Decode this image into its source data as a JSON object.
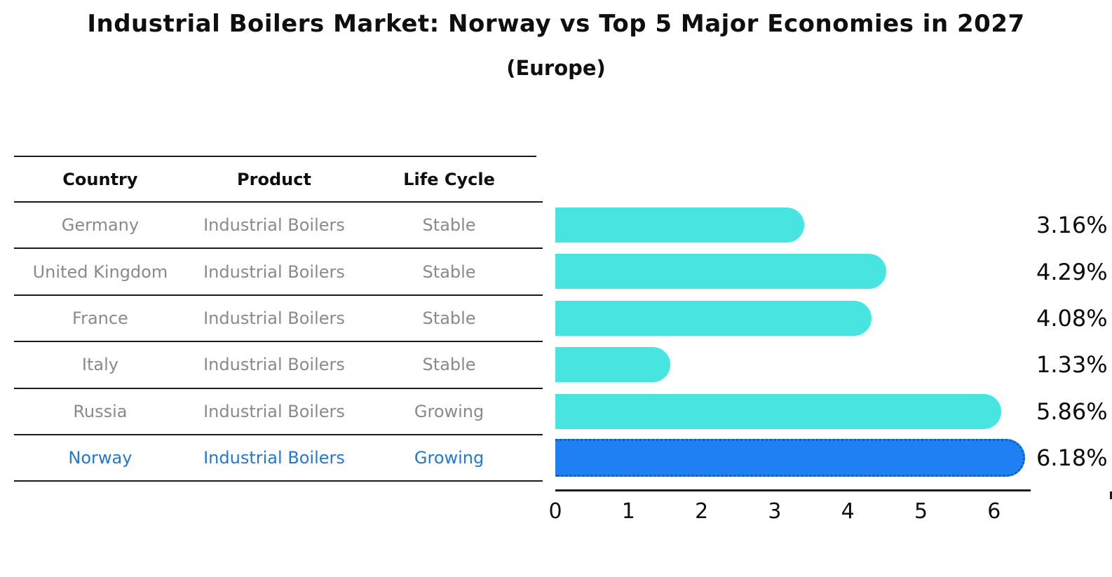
{
  "title": "Industrial Boilers Market: Norway vs Top 5 Major Economies in 2027",
  "subtitle": "(Europe)",
  "table": {
    "headers": [
      "Country",
      "Product",
      "Life Cycle"
    ],
    "rows": [
      {
        "country": "Germany",
        "product": "Industrial Boilers",
        "life_cycle": "Stable",
        "highlight": false
      },
      {
        "country": "United Kingdom",
        "product": "Industrial Boilers",
        "life_cycle": "Stable",
        "highlight": false
      },
      {
        "country": "France",
        "product": "Industrial Boilers",
        "life_cycle": "Stable",
        "highlight": false
      },
      {
        "country": "Italy",
        "product": "Industrial Boilers",
        "life_cycle": "Stable",
        "highlight": false
      },
      {
        "country": "Russia",
        "product": "Industrial Boilers",
        "life_cycle": "Growing",
        "highlight": false
      },
      {
        "country": "Norway",
        "product": "Industrial Boilers",
        "life_cycle": "Growing",
        "highlight": true
      }
    ]
  },
  "chart_data": {
    "type": "bar",
    "orientation": "horizontal",
    "categories": [
      "Germany",
      "United Kingdom",
      "France",
      "Italy",
      "Russia",
      "Norway"
    ],
    "values": [
      3.16,
      4.29,
      4.08,
      1.33,
      5.86,
      6.18
    ],
    "value_labels": [
      "3.16%",
      "4.29%",
      "4.08%",
      "1.33%",
      "5.86%",
      "6.18%"
    ],
    "xticks": [
      0,
      1,
      2,
      3,
      4,
      5,
      6
    ],
    "xlim": [
      0,
      6.5
    ],
    "grid": false,
    "highlight_index": 5,
    "bar_color": "#48e5e0",
    "highlight_color": "#1e80f2",
    "highlight_border_color": "#0f5bbf"
  },
  "colors": {
    "accent_text": "#2478cf",
    "table_text": "#8a8a8a",
    "heading_text": "#0f0f0f"
  }
}
